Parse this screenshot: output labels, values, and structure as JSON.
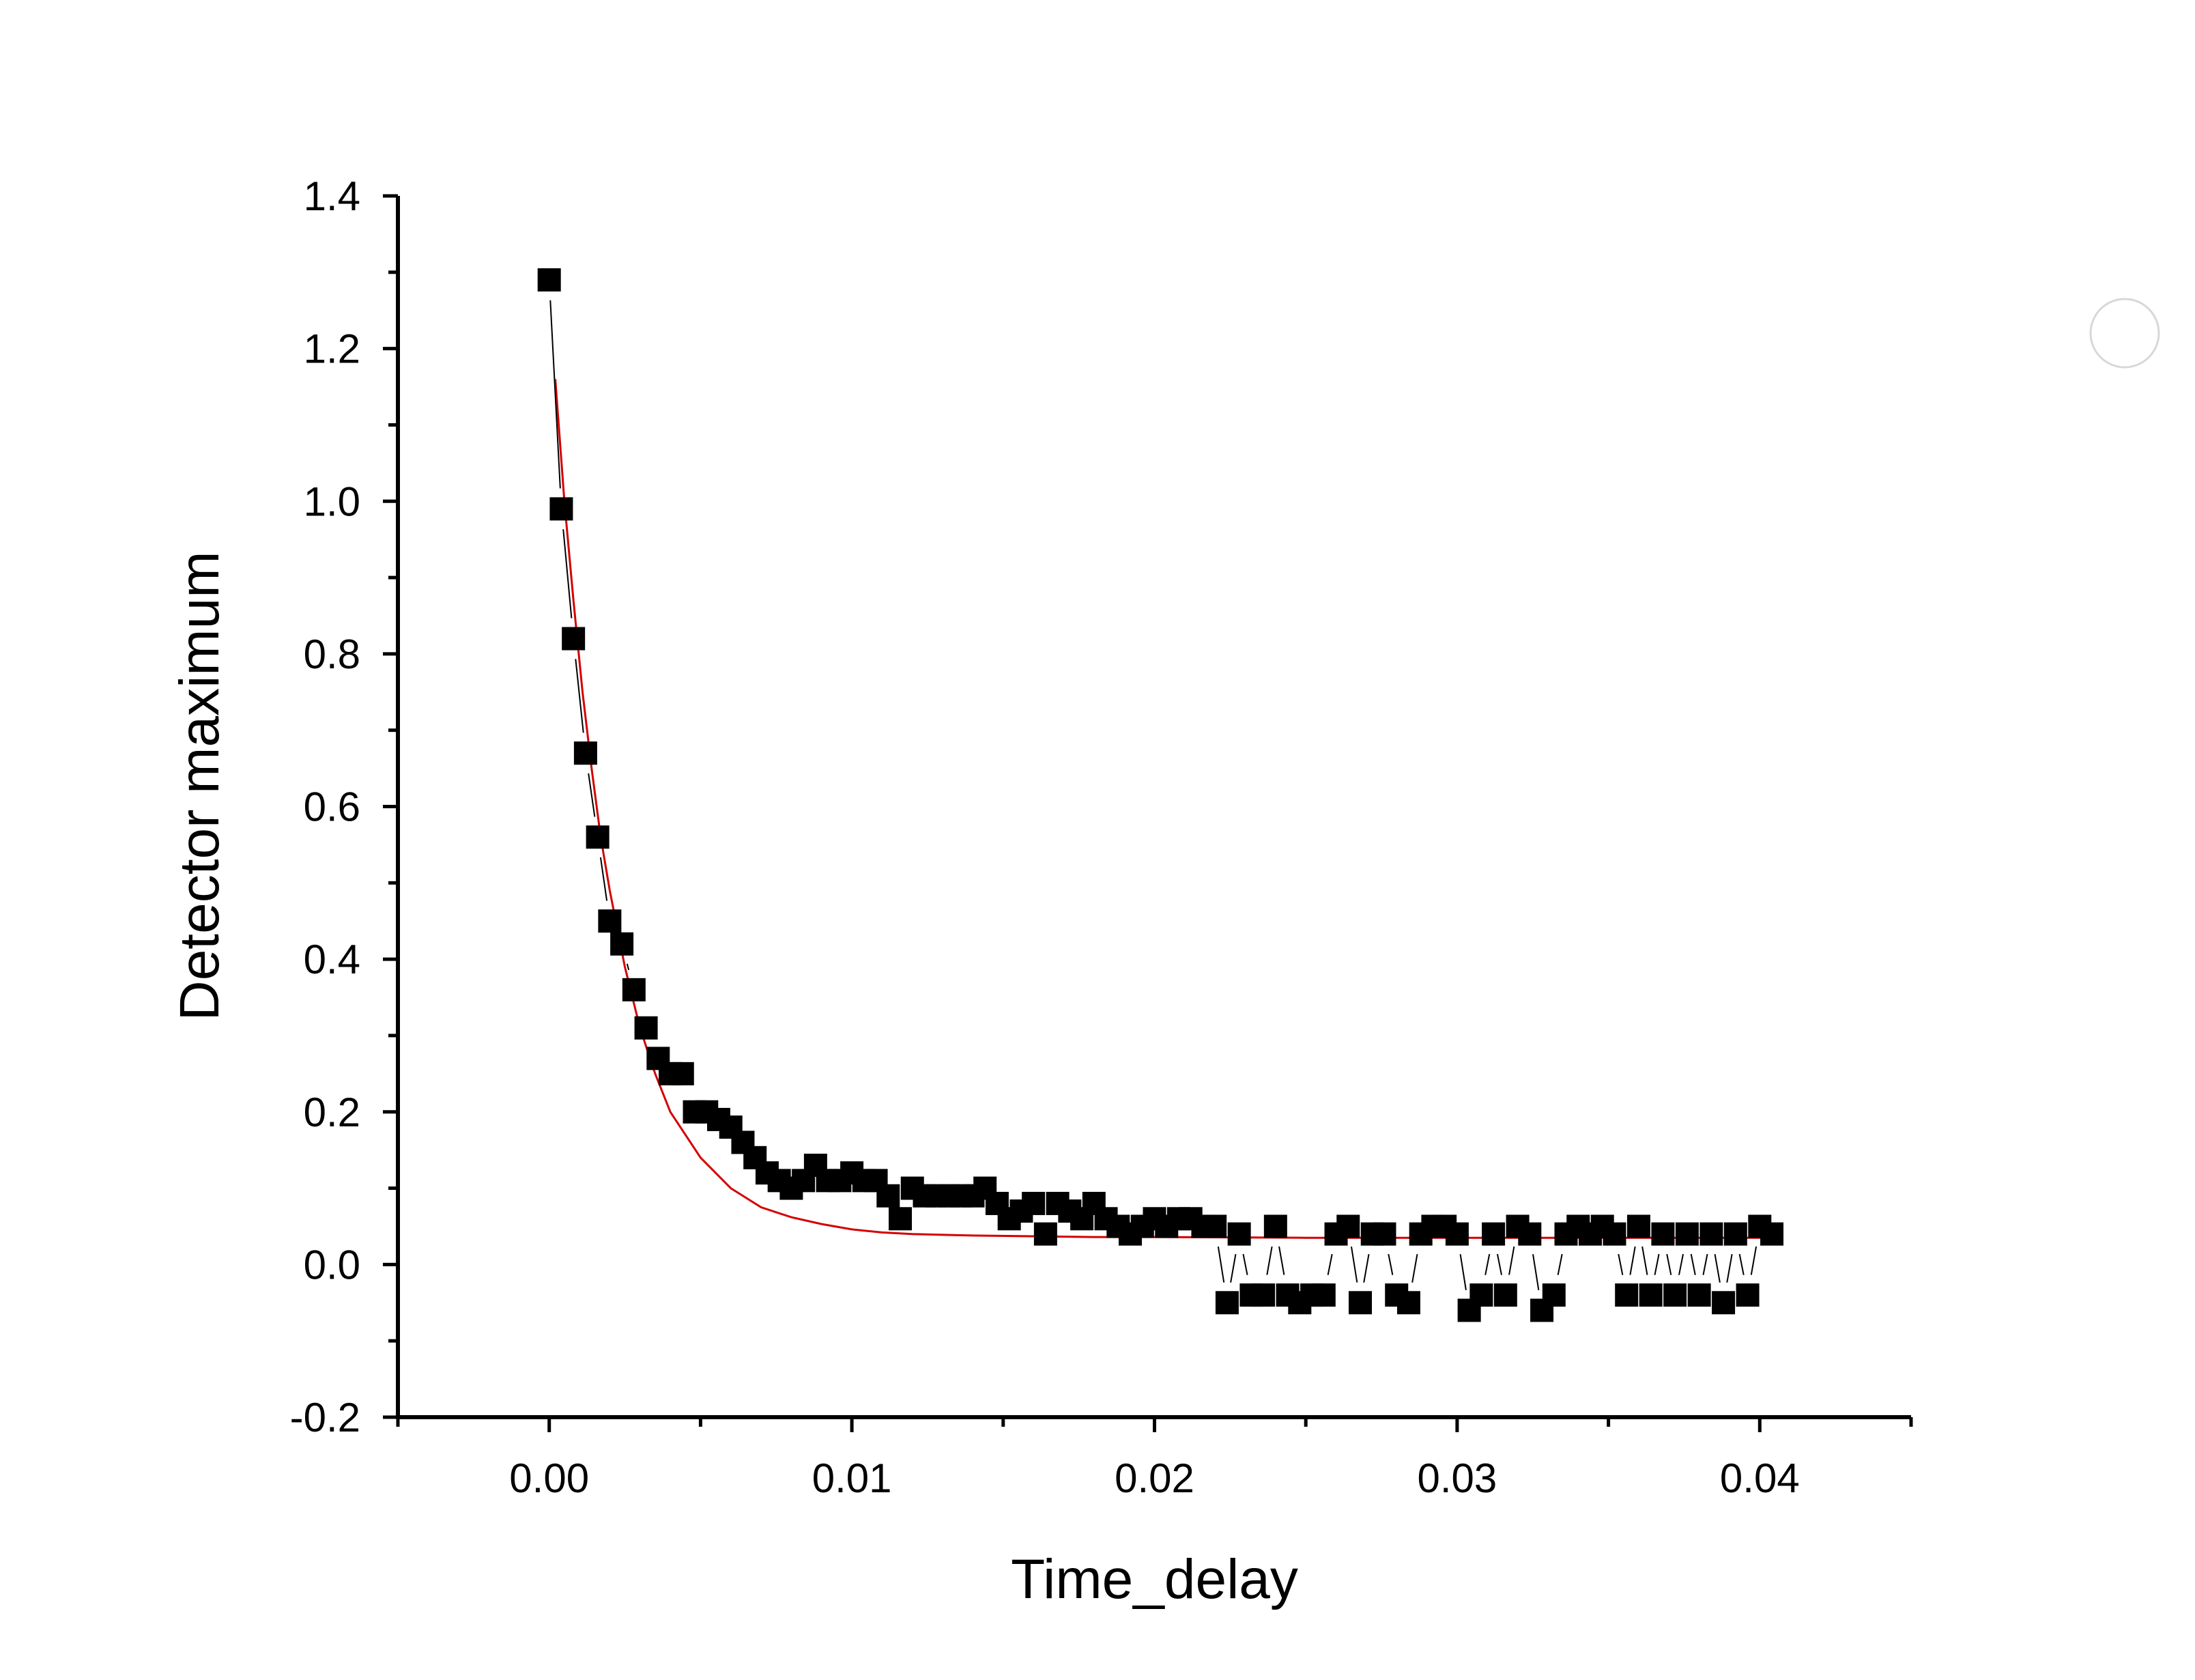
{
  "chart_data": {
    "type": "scatter",
    "title": "",
    "xlabel": "Time_delay",
    "ylabel": "Detector maximum",
    "xlim": [
      -0.005,
      0.045
    ],
    "ylim": [
      -0.2,
      1.4
    ],
    "xticks": [
      0.0,
      0.01,
      0.02,
      0.03,
      0.04
    ],
    "xtick_labels": [
      "0.00",
      "0.01",
      "0.02",
      "0.03",
      "0.04"
    ],
    "yticks": [
      -0.2,
      0.0,
      0.2,
      0.4,
      0.6,
      0.8,
      1.0,
      1.2,
      1.4
    ],
    "ytick_labels": [
      "-0.2",
      "0.0",
      "0.2",
      "0.4",
      "0.6",
      "0.8",
      "1.0",
      "1.2",
      "1.4"
    ],
    "grid": false,
    "legend": "none",
    "colors": {
      "data": "#000000",
      "fit": "#d40000",
      "axis": "#000000"
    },
    "series": [
      {
        "kind": "markers-with-line",
        "marker": "square",
        "x": [
          0.0,
          0.0004,
          0.0008,
          0.0012,
          0.0016,
          0.002,
          0.0024,
          0.0028,
          0.0032,
          0.0036,
          0.004,
          0.0044,
          0.0048,
          0.0052,
          0.0056,
          0.006,
          0.0064,
          0.0068,
          0.0072,
          0.0076,
          0.008,
          0.0084,
          0.0088,
          0.0092,
          0.0096,
          0.01,
          0.0104,
          0.0108,
          0.0112,
          0.0116,
          0.012,
          0.0124,
          0.0128,
          0.0132,
          0.0136,
          0.014,
          0.0144,
          0.0148,
          0.0152,
          0.0156,
          0.016,
          0.0164,
          0.0168,
          0.0172,
          0.0176,
          0.018,
          0.0184,
          0.0188,
          0.0192,
          0.0196,
          0.02,
          0.0204,
          0.0208,
          0.0212,
          0.0216,
          0.022,
          0.0224,
          0.0228,
          0.0232,
          0.0236,
          0.024,
          0.0244,
          0.0248,
          0.0252,
          0.0256,
          0.026,
          0.0264,
          0.0268,
          0.0272,
          0.0276,
          0.028,
          0.0284,
          0.0288,
          0.0292,
          0.0296,
          0.03,
          0.0304,
          0.0308,
          0.0312,
          0.0316,
          0.032,
          0.0324,
          0.0328,
          0.0332,
          0.0336,
          0.034,
          0.0344,
          0.0348,
          0.0352,
          0.0356,
          0.036,
          0.0364,
          0.0368,
          0.0372,
          0.0376,
          0.038,
          0.0384,
          0.0388,
          0.0392,
          0.0396,
          0.04,
          0.0404
        ],
        "y": [
          1.29,
          0.99,
          0.82,
          0.67,
          0.56,
          0.45,
          0.42,
          0.36,
          0.31,
          0.27,
          0.25,
          0.25,
          0.2,
          0.2,
          0.19,
          0.18,
          0.16,
          0.14,
          0.12,
          0.11,
          0.1,
          0.11,
          0.13,
          0.11,
          0.11,
          0.12,
          0.11,
          0.11,
          0.09,
          0.06,
          0.1,
          0.09,
          0.09,
          0.09,
          0.09,
          0.09,
          0.1,
          0.08,
          0.06,
          0.07,
          0.08,
          0.04,
          0.08,
          0.07,
          0.06,
          0.08,
          0.06,
          0.05,
          0.04,
          0.05,
          0.06,
          0.05,
          0.06,
          0.06,
          0.05,
          0.05,
          -0.05,
          0.04,
          -0.04,
          -0.04,
          0.05,
          -0.04,
          -0.05,
          -0.04,
          -0.04,
          0.04,
          0.05,
          -0.05,
          0.04,
          0.04,
          -0.04,
          -0.05,
          0.04,
          0.05,
          0.05,
          0.04,
          -0.06,
          -0.04,
          0.04,
          -0.04,
          0.05,
          0.04,
          -0.06,
          -0.04,
          0.04,
          0.05,
          0.04,
          0.05,
          0.04,
          -0.04,
          0.05,
          -0.04,
          0.04,
          -0.04,
          0.04,
          -0.04,
          0.04,
          -0.05,
          0.04,
          -0.04,
          0.05,
          0.04
        ]
      },
      {
        "kind": "fit-line",
        "x": [
          0.0002,
          0.0005,
          0.0008,
          0.0011,
          0.0014,
          0.0017,
          0.002,
          0.0025,
          0.003,
          0.0035,
          0.004,
          0.005,
          0.006,
          0.007,
          0.008,
          0.009,
          0.01,
          0.011,
          0.012,
          0.014,
          0.016,
          0.018,
          0.02,
          0.025,
          0.03,
          0.035,
          0.04,
          0.0404
        ],
        "y": [
          1.16,
          1.0,
          0.87,
          0.75,
          0.65,
          0.56,
          0.49,
          0.39,
          0.31,
          0.25,
          0.2,
          0.14,
          0.1,
          0.075,
          0.062,
          0.053,
          0.046,
          0.042,
          0.04,
          0.038,
          0.037,
          0.036,
          0.036,
          0.035,
          0.035,
          0.035,
          0.035,
          0.035
        ]
      }
    ]
  }
}
